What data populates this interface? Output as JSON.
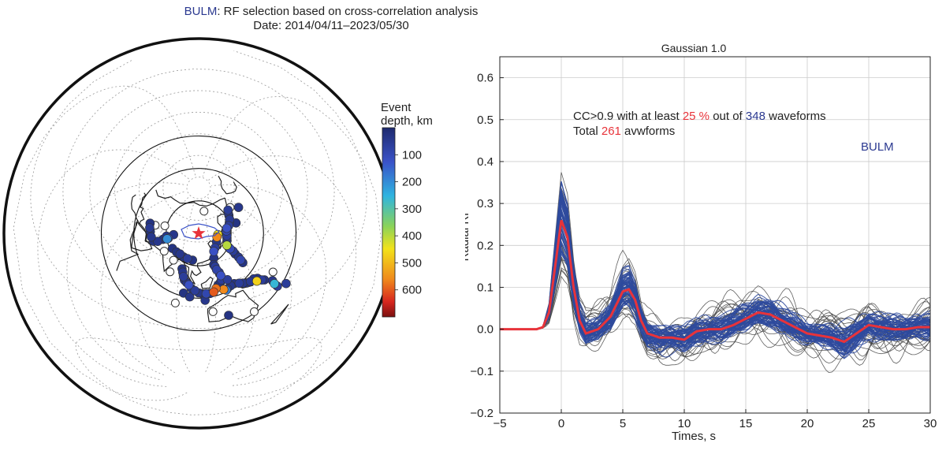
{
  "header": {
    "station": "BULM",
    "title_rest": ": RF selection based on cross-correlation analysis",
    "date_line": "Date: 2014/04/11–2023/05/30"
  },
  "colors": {
    "rf_traces": "#2e4a9e",
    "outlier_traces": "#444444",
    "mean_rf": "#e8333a",
    "accent_red": "#e8333a",
    "accent_blue": "#2b3990"
  },
  "map": {
    "colorbar_title_1": "Event",
    "colorbar_title_2": "depth, km",
    "colorbar_ticks": [
      "100",
      "200",
      "300",
      "400",
      "500",
      "600"
    ],
    "colorbar_range_km": [
      0,
      700
    ],
    "station_marker": "red-star-icon",
    "events": [
      {
        "lon": 122,
        "lat": 24,
        "depth": 30
      },
      {
        "lon": 123,
        "lat": 30,
        "depth": 120
      },
      {
        "lon": 125,
        "lat": 33,
        "depth": 60
      },
      {
        "lon": 128,
        "lat": 38,
        "depth": 40
      },
      {
        "lon": 130,
        "lat": 42,
        "depth": 560
      },
      {
        "lon": 132,
        "lat": 44,
        "depth": 450
      },
      {
        "lon": 140,
        "lat": 36,
        "depth": 40
      },
      {
        "lon": 141,
        "lat": 38,
        "depth": 50
      },
      {
        "lon": 142,
        "lat": 40,
        "depth": 60
      },
      {
        "lon": 143,
        "lat": 42,
        "depth": 40
      },
      {
        "lon": 144,
        "lat": 44,
        "depth": 90
      },
      {
        "lon": 146,
        "lat": 46,
        "depth": 120
      },
      {
        "lon": 150,
        "lat": 47,
        "depth": 60
      },
      {
        "lon": 153,
        "lat": 49,
        "depth": 40
      },
      {
        "lon": 156,
        "lat": 51,
        "depth": 50
      },
      {
        "lon": 159,
        "lat": 54,
        "depth": 30
      },
      {
        "lon": 161,
        "lat": 56,
        "depth": 40
      },
      {
        "lon": 164,
        "lat": 58,
        "depth": 60
      },
      {
        "lon": 138,
        "lat": 32,
        "depth": 400
      },
      {
        "lon": 139,
        "lat": 30,
        "depth": 40
      },
      {
        "lon": 140,
        "lat": 28,
        "depth": 100
      },
      {
        "lon": 142,
        "lat": 25,
        "depth": 60
      },
      {
        "lon": 143,
        "lat": 22,
        "depth": 30
      },
      {
        "lon": 145,
        "lat": 18,
        "depth": 40
      },
      {
        "lon": 146,
        "lat": 15,
        "depth": 90
      },
      {
        "lon": 147,
        "lat": 12,
        "depth": 30
      },
      {
        "lon": 121,
        "lat": 18,
        "depth": 30
      },
      {
        "lon": 122,
        "lat": 16,
        "depth": 60
      },
      {
        "lon": 123,
        "lat": 13,
        "depth": 80
      },
      {
        "lon": 125,
        "lat": 10,
        "depth": 50
      },
      {
        "lon": 126,
        "lat": 7,
        "depth": 120
      },
      {
        "lon": 126,
        "lat": 3,
        "depth": 60
      },
      {
        "lon": 125,
        "lat": 1,
        "depth": 40
      },
      {
        "lon": 123,
        "lat": -1,
        "depth": 30
      },
      {
        "lon": 121,
        "lat": -4,
        "depth": 580
      },
      {
        "lon": 119,
        "lat": -7,
        "depth": 600
      },
      {
        "lon": 116,
        "lat": -8,
        "depth": 40
      },
      {
        "lon": 113,
        "lat": -8,
        "depth": 90
      },
      {
        "lon": 110,
        "lat": -8,
        "depth": 30
      },
      {
        "lon": 107,
        "lat": -7,
        "depth": 40
      },
      {
        "lon": 104,
        "lat": -5,
        "depth": 60
      },
      {
        "lon": 101,
        "lat": -3,
        "depth": 30
      },
      {
        "lon": 99,
        "lat": 0,
        "depth": 120
      },
      {
        "lon": 97,
        "lat": 2,
        "depth": 40
      },
      {
        "lon": 95,
        "lat": 4,
        "depth": 30
      },
      {
        "lon": 94,
        "lat": 7,
        "depth": 60
      },
      {
        "lon": 93,
        "lat": 11,
        "depth": 40
      },
      {
        "lon": 92,
        "lat": 14,
        "depth": 30
      },
      {
        "lon": 127,
        "lat": -6,
        "depth": 560
      },
      {
        "lon": 129,
        "lat": -7,
        "depth": 180
      },
      {
        "lon": 130,
        "lat": -6,
        "depth": 50
      },
      {
        "lon": 133,
        "lat": -4,
        "depth": 40
      },
      {
        "lon": 136,
        "lat": -3,
        "depth": 30
      },
      {
        "lon": 140,
        "lat": -4,
        "depth": 60
      },
      {
        "lon": 143,
        "lat": -5,
        "depth": 40
      },
      {
        "lon": 146,
        "lat": -6,
        "depth": 30
      },
      {
        "lon": 149,
        "lat": -6,
        "depth": 50
      },
      {
        "lon": 152,
        "lat": -5,
        "depth": 40
      },
      {
        "lon": 155,
        "lat": -6,
        "depth": 30
      },
      {
        "lon": 154,
        "lat": -8,
        "depth": 470
      },
      {
        "lon": 158,
        "lat": -9,
        "depth": 60
      },
      {
        "lon": 160,
        "lat": -10,
        "depth": 30
      },
      {
        "lon": 166,
        "lat": -14,
        "depth": 40
      },
      {
        "lon": 167,
        "lat": -17,
        "depth": 260
      },
      {
        "lon": 169,
        "lat": -20,
        "depth": 60
      },
      {
        "lon": 70,
        "lat": 36,
        "depth": 200
      },
      {
        "lon": 71,
        "lat": 37,
        "depth": 90
      },
      {
        "lon": 68,
        "lat": 38,
        "depth": 40
      },
      {
        "lon": 66,
        "lat": 34,
        "depth": 30
      },
      {
        "lon": 62,
        "lat": 30,
        "depth": 40
      },
      {
        "lon": 58,
        "lat": 28,
        "depth": 30
      },
      {
        "lon": 54,
        "lat": 30,
        "depth": 40
      },
      {
        "lon": 50,
        "lat": 33,
        "depth": 30
      },
      {
        "lon": 47,
        "lat": 35,
        "depth": 50
      },
      {
        "lon": 44,
        "lat": 38,
        "depth": 30
      },
      {
        "lon": 75,
        "lat": 42,
        "depth": 40
      },
      {
        "lon": 79,
        "lat": 30,
        "depth": 30
      },
      {
        "lon": 84,
        "lat": 28,
        "depth": 30
      },
      {
        "lon": 88,
        "lat": 27,
        "depth": 40
      },
      {
        "lon": 92,
        "lat": 25,
        "depth": 30
      },
      {
        "lon": 96,
        "lat": 24,
        "depth": 60
      },
      {
        "lon": 101,
        "lat": 23,
        "depth": 30
      },
      {
        "lon": 95,
        "lat": -8,
        "depth": 30
      },
      {
        "lon": 100,
        "lat": -11,
        "depth": 40
      },
      {
        "lon": 131,
        "lat": 2,
        "depth": 60
      },
      {
        "lon": 112,
        "lat": -14,
        "depth": 40
      },
      {
        "lon": 178,
        "lat": 52,
        "depth": 40
      },
      {
        "lon": 176,
        "lat": -22,
        "depth": 60
      },
      {
        "lon": 130,
        "lat": -30,
        "depth": 30
      },
      {
        "lon": 160,
        "lat": 45,
        "depth": 30
      }
    ],
    "open_events": [
      {
        "lon": 170,
        "lat": 58
      },
      {
        "lon": 120,
        "lat": 68
      },
      {
        "lon": 60,
        "lat": 45
      },
      {
        "lon": 50,
        "lat": 40
      },
      {
        "lon": 83,
        "lat": 20
      },
      {
        "lon": 82,
        "lat": 9
      },
      {
        "lon": 72,
        "lat": 25
      },
      {
        "lon": 89,
        "lat": -18
      },
      {
        "lon": 118,
        "lat": -25
      },
      {
        "lon": 150,
        "lat": -32
      },
      {
        "lon": 168,
        "lat": -8
      }
    ]
  },
  "chart_data": {
    "type": "line",
    "title": "Gaussian 1.0",
    "xlabel": "Times, s",
    "ylabel": "Radial RF",
    "xlim": [
      -5,
      30
    ],
    "ylim": [
      -0.2,
      0.65
    ],
    "xticks": [
      "−5",
      "0",
      "5",
      "10",
      "15",
      "20",
      "25",
      "30"
    ],
    "yticks": [
      "−0.2",
      "−0.1",
      "0.0",
      "0.1",
      "0.2",
      "0.3",
      "0.4",
      "0.5",
      "0.6"
    ],
    "grid": true,
    "annotations": {
      "line1_a": "CC>0.9 with at least ",
      "line1_pct": "25 %",
      "line1_b": " out of ",
      "line1_n": "348",
      "line1_c": " waveforms",
      "line2_a": "Total ",
      "line2_n": "261",
      "line2_b": " avwforms",
      "station": "BULM"
    },
    "series": [
      {
        "x": [
          -5,
          -2,
          -1.5,
          -1,
          -0.5,
          0,
          0.5,
          1,
          1.5,
          2,
          3,
          4,
          4.5,
          5,
          5.5,
          6,
          6.5,
          7,
          8,
          9,
          10,
          11,
          12,
          13,
          14,
          15,
          16,
          17,
          18,
          19,
          20,
          21,
          22,
          23,
          24,
          25,
          26,
          27,
          28,
          29,
          30
        ],
        "y": [
          0,
          0,
          0.005,
          0.04,
          0.15,
          0.26,
          0.22,
          0.1,
          0.02,
          -0.01,
          0.0,
          0.03,
          0.06,
          0.09,
          0.095,
          0.07,
          0.02,
          -0.01,
          -0.02,
          -0.02,
          -0.025,
          -0.005,
          0.0,
          0.0,
          0.01,
          0.025,
          0.04,
          0.035,
          0.02,
          0.005,
          -0.01,
          -0.015,
          -0.02,
          -0.03,
          -0.01,
          0.01,
          0.005,
          0.0,
          0.0,
          0.005,
          0.005
        ]
      }
    ]
  }
}
